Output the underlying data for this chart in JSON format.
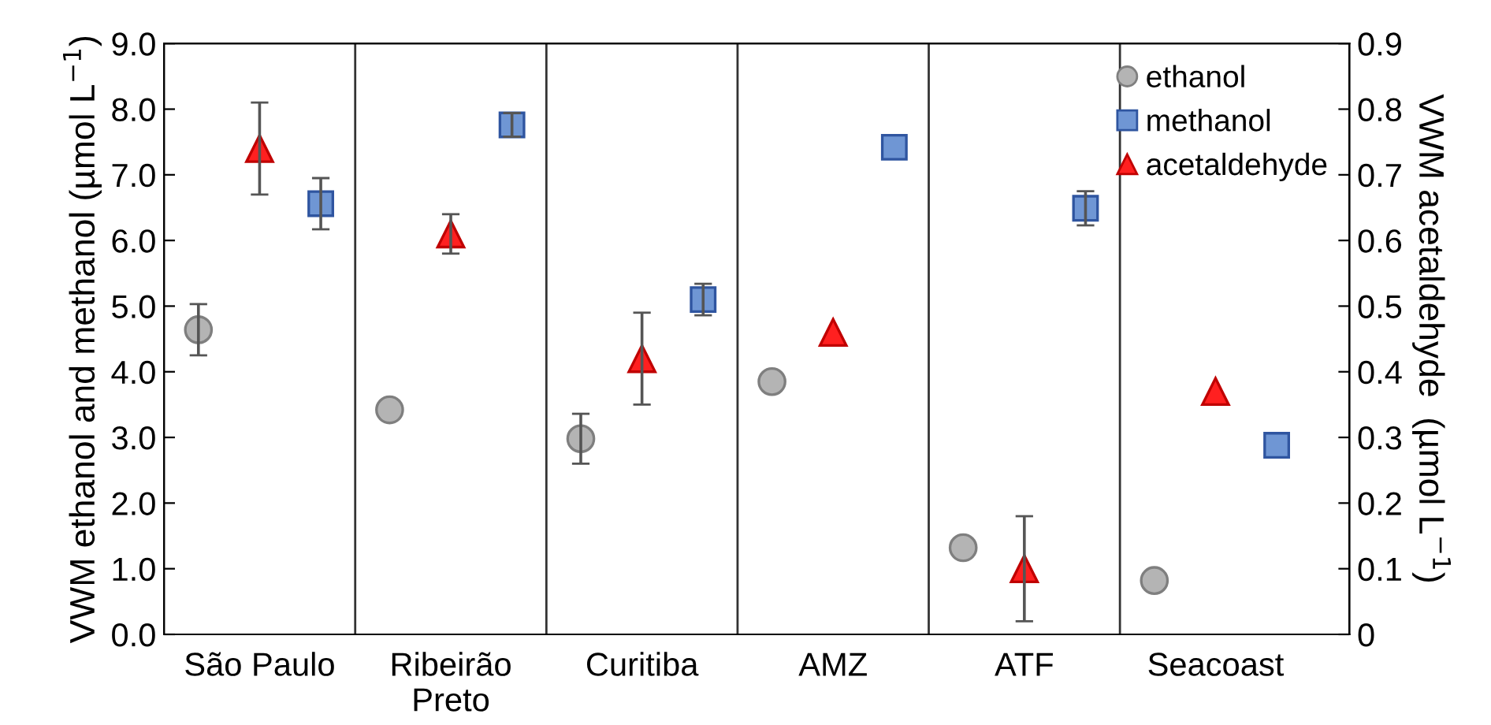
{
  "chart_data": {
    "type": "scatter",
    "ylabel": "VWM ethanol and methanol (µmol L$^{−1}$)",
    "y2label": "VWM acetaldehyde  (µmol L$^{−1}$)",
    "categories": [
      "São Paulo",
      "Ribeirão\nPreto",
      "Curitiba",
      "AMZ",
      "ATF",
      "Seacoast"
    ],
    "series": [
      {
        "name": "ethanol",
        "color": "#b4b4b4",
        "marker": "circle",
        "values": [
          4.64,
          3.42,
          2.98,
          3.85,
          1.32,
          0.82
        ],
        "errors": [
          0.39,
          null,
          0.38,
          null,
          null,
          null
        ]
      },
      {
        "name": "methanol",
        "color": "#6f96d4",
        "marker": "square",
        "values": [
          6.56,
          7.76,
          5.1,
          7.42,
          6.49,
          2.88
        ],
        "errors": [
          0.39,
          0.18,
          0.24,
          null,
          0.26,
          null
        ]
      },
      {
        "name": "acetaldehyde",
        "color": "#ff2020",
        "marker": "triangle",
        "axis": "y2",
        "values": [
          0.74,
          0.61,
          0.42,
          0.46,
          0.1,
          0.37
        ],
        "errors": [
          0.07,
          0.03,
          0.07,
          null,
          0.08,
          null
        ]
      }
    ],
    "ylim": [
      0,
      9
    ],
    "yticks": [
      {
        "value": 0,
        "label": "0.0"
      },
      {
        "value": 1,
        "label": "1.0"
      },
      {
        "value": 2,
        "label": "2.0"
      },
      {
        "value": 3,
        "label": "3.0"
      },
      {
        "value": 4,
        "label": "4.0"
      },
      {
        "value": 5,
        "label": "5.0"
      },
      {
        "value": 6,
        "label": "6.0"
      },
      {
        "value": 7,
        "label": "7.0"
      },
      {
        "value": 8,
        "label": "8.0"
      },
      {
        "value": 9,
        "label": "9.0"
      }
    ],
    "y2lim": [
      0,
      0.9
    ],
    "y2ticks": [
      0,
      0.1,
      0.2,
      0.3,
      0.4,
      0.5,
      0.6,
      0.7,
      0.8,
      0.9
    ],
    "grid": false,
    "legend": "top right"
  }
}
